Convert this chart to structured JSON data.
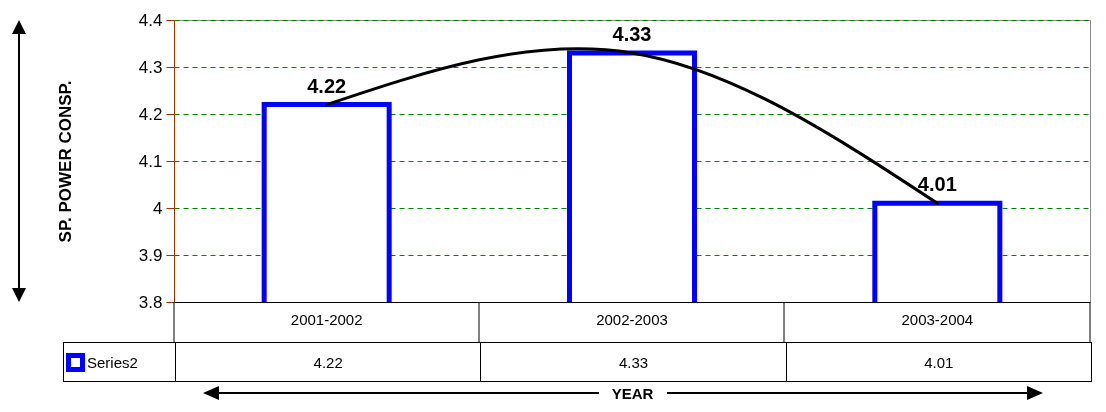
{
  "chart_data": {
    "type": "bar",
    "ylabel": "SP. POWER CONSP.",
    "xlabel": "YEAR",
    "categories": [
      "2001-2002",
      "2002-2003",
      "2003-2004"
    ],
    "series": [
      {
        "name": "Series2",
        "color": "#0000ff",
        "values": [
          4.22,
          4.33,
          4.01
        ]
      },
      {
        "type": "line",
        "color": "#000000",
        "x": [
          "2001-2002",
          "2002-2003",
          "2003-2004"
        ],
        "values": [
          4.22,
          4.33,
          4.01
        ]
      }
    ],
    "ylim": [
      3.8,
      4.4
    ],
    "yticks": [
      3.8,
      3.9,
      4,
      4.1,
      4.2,
      4.3,
      4.4
    ],
    "grid": "y",
    "legend": "bottom left",
    "data_labels": true
  }
}
